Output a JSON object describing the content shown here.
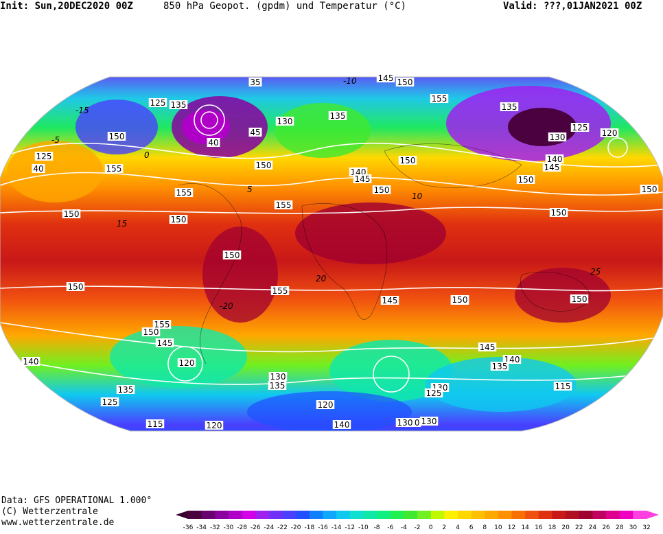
{
  "header": {
    "init": "Init: Sun,20DEC2020 00Z",
    "title": "850 hPa Geopot. (gpdm) und Temperatur (°C)",
    "valid": "Valid: ???,01JAN2021 00Z"
  },
  "footer": {
    "data_line": "Data: GFS OPERATIONAL 1.000°",
    "copyright": "(C) Wetterzentrale",
    "website": "www.wetterzentrale.de"
  },
  "legend": {
    "ticks": [
      "-36",
      "-34",
      "-32",
      "-30",
      "-28",
      "-26",
      "-24",
      "-22",
      "-20",
      "-18",
      "-16",
      "-14",
      "-12",
      "-10",
      "-8",
      "-6",
      "-4",
      "-2",
      "0",
      "2",
      "4",
      "6",
      "8",
      "10",
      "12",
      "14",
      "16",
      "18",
      "20",
      "22",
      "24",
      "26",
      "28",
      "30",
      "32"
    ],
    "colors": [
      "#4b0040",
      "#6a0070",
      "#8a00a0",
      "#b000c8",
      "#d400e8",
      "#a020f0",
      "#7030f8",
      "#4a40ff",
      "#2050ff",
      "#1080ff",
      "#10a8ff",
      "#10c8f0",
      "#10e0d0",
      "#10e8a8",
      "#10f080",
      "#20f050",
      "#40e830",
      "#70f020",
      "#c0f800",
      "#fff000",
      "#ffd800",
      "#ffc000",
      "#ffa800",
      "#ff9000",
      "#f87000",
      "#f05010",
      "#e03010",
      "#c81818",
      "#b01020",
      "#a00030",
      "#c00060",
      "#e00090",
      "#f000c0",
      "#ff40e0"
    ]
  },
  "map": {
    "contour_labels": [
      {
        "text": "35"
      },
      {
        "text": "145"
      },
      {
        "text": "150"
      },
      {
        "text": "125"
      },
      {
        "text": "135"
      },
      {
        "text": "130"
      },
      {
        "text": "135"
      },
      {
        "text": "155"
      },
      {
        "text": "135"
      },
      {
        "text": "125"
      },
      {
        "text": "120"
      },
      {
        "text": "130"
      },
      {
        "text": "140"
      },
      {
        "text": "145"
      },
      {
        "text": "150"
      },
      {
        "text": "150"
      },
      {
        "text": "125"
      },
      {
        "text": "40"
      },
      {
        "text": "155"
      },
      {
        "text": "150"
      },
      {
        "text": "45"
      },
      {
        "text": "40"
      },
      {
        "text": "150"
      },
      {
        "text": "155"
      },
      {
        "text": "155"
      },
      {
        "text": "150"
      },
      {
        "text": "140"
      },
      {
        "text": "145"
      },
      {
        "text": "150"
      },
      {
        "text": "150"
      },
      {
        "text": "150"
      },
      {
        "text": "150"
      },
      {
        "text": "155"
      },
      {
        "text": "145"
      },
      {
        "text": "150"
      },
      {
        "text": "150"
      },
      {
        "text": "150"
      },
      {
        "text": "155"
      },
      {
        "text": "150"
      },
      {
        "text": "145"
      },
      {
        "text": "140"
      },
      {
        "text": "140"
      },
      {
        "text": "120"
      },
      {
        "text": "135"
      },
      {
        "text": "145"
      },
      {
        "text": "130"
      },
      {
        "text": "115"
      },
      {
        "text": "130"
      },
      {
        "text": "125"
      },
      {
        "text": "135"
      },
      {
        "text": "125"
      },
      {
        "text": "130"
      },
      {
        "text": "120"
      },
      {
        "text": "115"
      },
      {
        "text": "120"
      },
      {
        "text": "130"
      },
      {
        "text": "130"
      },
      {
        "text": "140"
      },
      {
        "text": "135"
      },
      {
        "text": "115"
      },
      {
        "text": "150"
      },
      {
        "text": "150"
      }
    ],
    "temperature_labels": [
      "-10",
      "-15",
      "-5",
      "0",
      "5",
      "10",
      "15",
      "20",
      "-20",
      "25"
    ]
  }
}
